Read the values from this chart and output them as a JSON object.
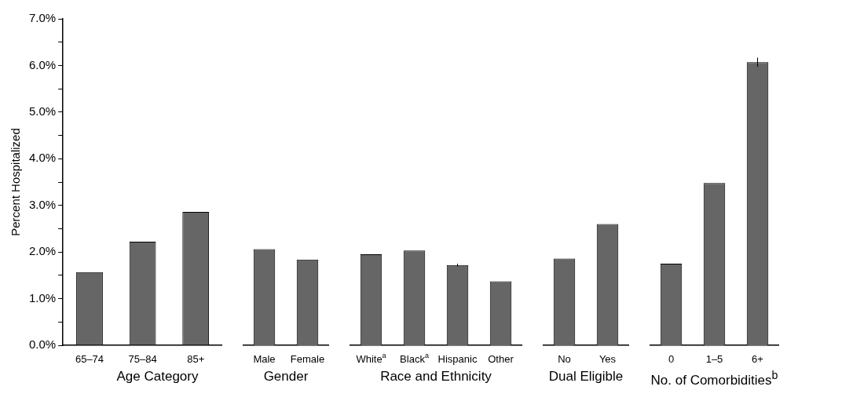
{
  "chart_data": [
    {
      "type": "bar",
      "categories": [
        "65–74",
        "75–84",
        "85+"
      ],
      "values": [
        1.57,
        2.22,
        2.86
      ],
      "color": "#666666",
      "xlabel": "Age Category",
      "ylabel": "Percent Hospitalized",
      "ylim": [
        0,
        7
      ],
      "yticks": [
        {
          "value": 0,
          "label": "0.0%"
        },
        {
          "value": 0.5,
          "label": null
        },
        {
          "value": 1,
          "label": "1.0%"
        },
        {
          "value": 1.5,
          "label": null
        },
        {
          "value": 2,
          "label": "2.0%"
        },
        {
          "value": 2.5,
          "label": null
        },
        {
          "value": 3,
          "label": "3.0%"
        },
        {
          "value": 3.5,
          "label": null
        },
        {
          "value": 4,
          "label": "4.0%"
        },
        {
          "value": 4.5,
          "label": null
        },
        {
          "value": 5,
          "label": "5.0%"
        },
        {
          "value": 5.5,
          "label": null
        },
        {
          "value": 6,
          "label": "6.0%"
        },
        {
          "value": 6.5,
          "label": null
        },
        {
          "value": 7,
          "label": "7.0%"
        }
      ]
    },
    {
      "type": "bar",
      "categories": [
        "Male",
        "Female"
      ],
      "values": [
        2.06,
        1.84
      ],
      "color": "#666666",
      "xlabel": "Gender",
      "ylim": [
        0,
        7
      ],
      "tick_labels": "x"
    },
    {
      "type": "bar",
      "categories": [
        "White$^{a}$",
        "Black$^{a}$",
        "Hispanic",
        "Other"
      ],
      "values": [
        1.95,
        2.03,
        1.72,
        1.37
      ],
      "errors": [
        null,
        null,
        0.03,
        null
      ],
      "color": "#666666",
      "xlabel": "Race and Ethnicity",
      "ylim": [
        0,
        7
      ],
      "tick_labels": "x"
    },
    {
      "type": "bar",
      "categories": [
        "No",
        "Yes"
      ],
      "values": [
        1.86,
        2.6
      ],
      "color": "#666666",
      "xlabel": "Dual Eligible",
      "ylim": [
        0,
        7
      ],
      "tick_labels": "x"
    },
    {
      "type": "bar",
      "categories": [
        "0",
        "1–5",
        "6+"
      ],
      "values": [
        1.75,
        3.48,
        6.07
      ],
      "errors": [
        null,
        null,
        0.1
      ],
      "color": "#666666",
      "xlabel": "No. of Comorbidities$^{b}$",
      "ylim": [
        0,
        7
      ],
      "tick_labels": "x"
    }
  ]
}
